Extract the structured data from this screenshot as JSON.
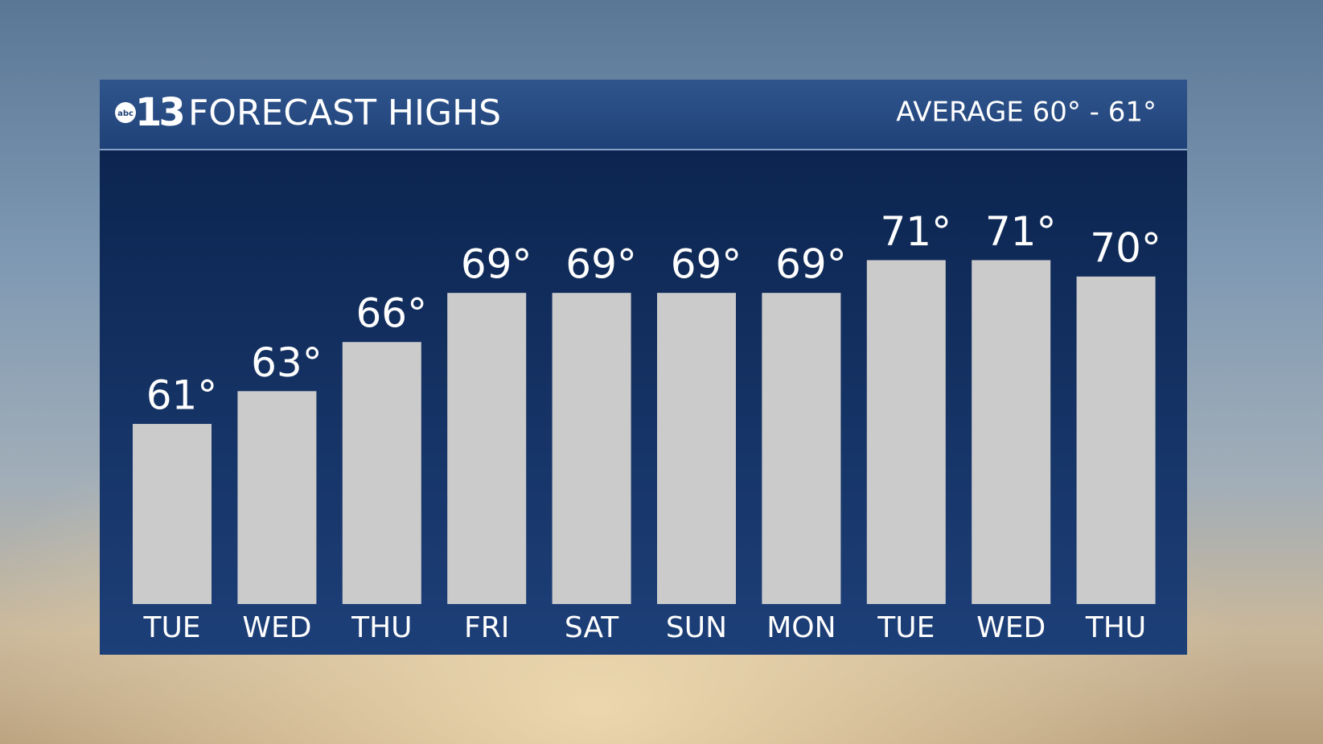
{
  "chart_data": {
    "type": "bar",
    "brand": "abc",
    "channel": "13",
    "title": "FORECAST HIGHS",
    "subtitle": "AVERAGE 60° - 61°",
    "categories": [
      "TUE",
      "WED",
      "THU",
      "FRI",
      "SAT",
      "SUN",
      "MON",
      "TUE",
      "WED",
      "THU"
    ],
    "values": [
      61,
      63,
      66,
      69,
      69,
      69,
      69,
      71,
      71,
      70
    ],
    "value_labels": [
      "61°",
      "63°",
      "66°",
      "69°",
      "69°",
      "69°",
      "69°",
      "71°",
      "71°",
      "70°"
    ],
    "color": "#cbcbcb",
    "ylim": [
      50,
      75
    ],
    "grid": false
  }
}
